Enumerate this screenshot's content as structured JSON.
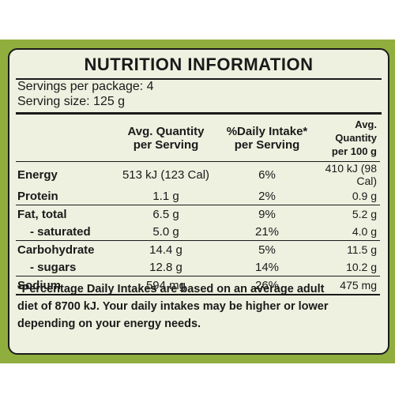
{
  "panel": {
    "title": "NUTRITION INFORMATION",
    "servings_per_package": "Servings per package: 4",
    "serving_size": "Serving size: 125 g"
  },
  "table": {
    "headers": {
      "per_serving": [
        "Avg. Quantity",
        "per Serving"
      ],
      "daily_intake": [
        "%Daily Intake*",
        "per Serving"
      ],
      "per_100g": [
        "Avg. Quantity",
        "per 100 g"
      ]
    },
    "rows": [
      {
        "name": "Energy",
        "per_serving": "513 kJ (123 Cal)",
        "daily_intake": "6%",
        "per_100g": "410 kJ (98 Cal)"
      },
      {
        "name": "Protein",
        "per_serving": "1.1 g",
        "daily_intake": "2%",
        "per_100g": "0.9 g"
      },
      {
        "name": "Fat, total",
        "per_serving": "6.5 g",
        "daily_intake": "9%",
        "per_100g": "5.2 g"
      },
      {
        "name": "- saturated",
        "per_serving": "5.0 g",
        "daily_intake": "21%",
        "per_100g": "4.0 g"
      },
      {
        "name": "Carbohydrate",
        "per_serving": "14.4 g",
        "daily_intake": "5%",
        "per_100g": "11.5 g"
      },
      {
        "name": "- sugars",
        "per_serving": "12.8 g",
        "daily_intake": "14%",
        "per_100g": "10.2 g"
      },
      {
        "name": "Sodium",
        "per_serving": "594 mg",
        "daily_intake": "26%",
        "per_100g": "475 mg"
      }
    ]
  },
  "footnote": {
    "lines": [
      "*Percentage Daily Intakes are based on an average adult",
      "diet of 8700 kJ. Your daily intakes may be higher or lower",
      "depending on your energy needs."
    ]
  },
  "colors": {
    "band_green": "#8fae3e",
    "panel_bg": "#eef1e0",
    "text": "#1a1a1a"
  }
}
